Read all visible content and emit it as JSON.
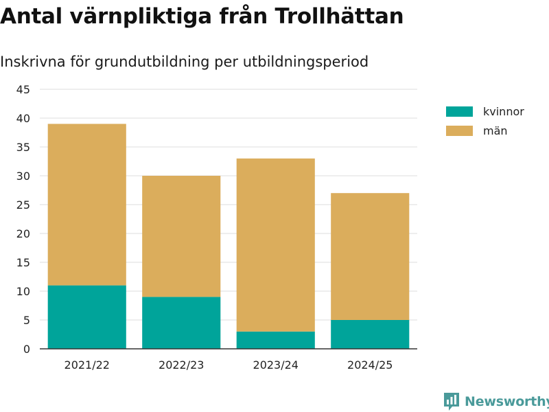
{
  "title": "Antal värnpliktiga från Trollhättan",
  "subtitle": "Inskrivna för grundutbildning per utbildningsperiod",
  "legend": [
    {
      "label": "kvinnor",
      "color": "#00a49a"
    },
    {
      "label": "män",
      "color": "#dbad5c"
    }
  ],
  "brand": {
    "name": "Newsworthy",
    "icon": "newsworthy-logo-icon"
  },
  "chart_data": {
    "type": "bar",
    "stacked": true,
    "title": "Antal värnpliktiga från Trollhättan",
    "subtitle": "Inskrivna för grundutbildning per utbildningsperiod",
    "categories": [
      "2021/22",
      "2022/23",
      "2023/24",
      "2024/25"
    ],
    "series": [
      {
        "name": "kvinnor",
        "color": "#00a49a",
        "values": [
          11,
          9,
          3,
          5
        ]
      },
      {
        "name": "män",
        "color": "#dbad5c",
        "values": [
          28,
          21,
          30,
          22
        ]
      }
    ],
    "xlabel": "",
    "ylabel": "",
    "ylim": [
      0,
      45
    ],
    "yticks": [
      0,
      5,
      10,
      15,
      20,
      25,
      30,
      35,
      40,
      45
    ],
    "grid": true,
    "legend_position": "top-right"
  }
}
